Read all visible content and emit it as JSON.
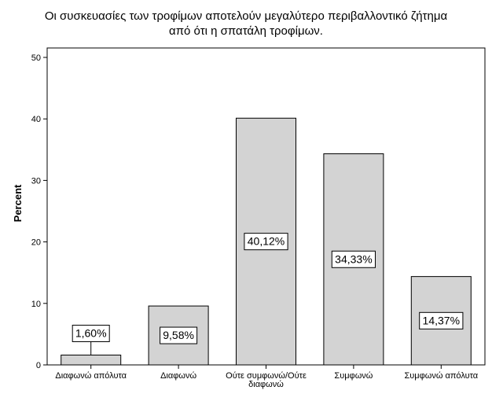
{
  "chart_data": {
    "type": "bar",
    "title_lines": [
      "Οι συσκευασίες των τροφίμων αποτελούν μεγαλύτερο περιβαλλοντικό ζήτημα",
      "από ότι η σπατάλη τροφίμων."
    ],
    "ylabel": "Percent",
    "xlabel": "",
    "ylim": [
      0,
      50
    ],
    "yticks": [
      0,
      10,
      20,
      30,
      40,
      50
    ],
    "categories": [
      [
        "Διαφωνώ απόλυτα"
      ],
      [
        "Διαφωνώ"
      ],
      [
        "Ούτε συμφωνώ/Ούτε",
        "διαφωνώ"
      ],
      [
        "Συμφωνώ"
      ],
      [
        "Συμφωνώ απόλυτα"
      ]
    ],
    "values": [
      1.6,
      9.58,
      40.12,
      34.33,
      14.37
    ],
    "data_labels": [
      "1,60%",
      "9,58%",
      "40,12%",
      "34,33%",
      "14,37%"
    ],
    "bar_color": "#d3d3d3",
    "grid": false,
    "legend": "none"
  }
}
